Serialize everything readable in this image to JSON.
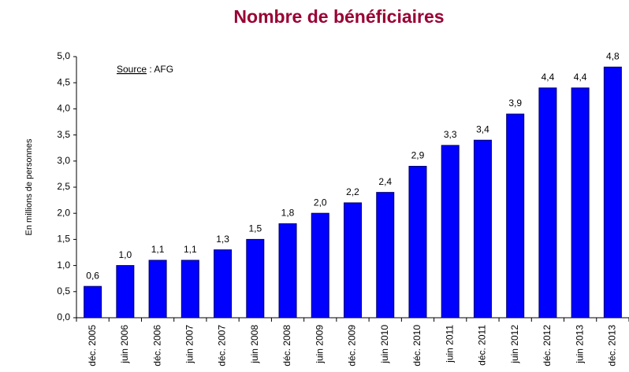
{
  "chart_data": {
    "type": "bar",
    "title": "Nombre de bénéficiaires",
    "ylabel": "En millions de personnes",
    "annotation": "Source : AFG",
    "categories": [
      "déc. 2005",
      "juin 2006",
      "déc. 2006",
      "juin 2007",
      "déc. 2007",
      "juin 2008",
      "déc. 2008",
      "juin 2009",
      "déc. 2009",
      "juin 2010",
      "déc. 2010",
      "juin 2011",
      "déc. 2011",
      "juin 2012",
      "déc. 2012",
      "juin 2013",
      "déc. 2013"
    ],
    "values": [
      0.6,
      1.0,
      1.1,
      1.1,
      1.3,
      1.5,
      1.8,
      2.0,
      2.2,
      2.4,
      2.9,
      3.3,
      3.4,
      3.9,
      4.4,
      4.4,
      4.8
    ],
    "value_labels": [
      "0,6",
      "1,0",
      "1,1",
      "1,1",
      "1,3",
      "1,5",
      "1,8",
      "2,0",
      "2,2",
      "2,4",
      "2,9",
      "3,3",
      "3,4",
      "3,9",
      "4,4",
      "4,4",
      "4,8"
    ],
    "color": "#0000ff",
    "ylim": [
      0,
      5
    ],
    "yticks": [
      {
        "value": 0,
        "label": "0,0"
      },
      {
        "value": 0.5,
        "label": "0,5"
      },
      {
        "value": 1,
        "label": "1,0"
      },
      {
        "value": 1.5,
        "label": "1,5"
      },
      {
        "value": 2,
        "label": "2,0"
      },
      {
        "value": 2.5,
        "label": "2,5"
      },
      {
        "value": 3,
        "label": "3,0"
      },
      {
        "value": 3.5,
        "label": "3,5"
      },
      {
        "value": 4,
        "label": "4,0"
      },
      {
        "value": 4.5,
        "label": "4,5"
      },
      {
        "value": 5,
        "label": "5,0"
      }
    ],
    "grid": false
  }
}
